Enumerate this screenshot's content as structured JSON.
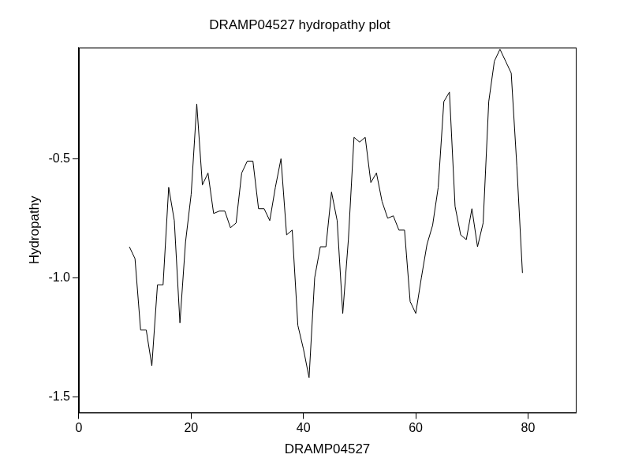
{
  "chart_data": {
    "type": "line",
    "title": "DRAMP04527 hydropathy plot",
    "x_label": "DRAMP04527",
    "y_label": "Hydropathy",
    "x": [
      9,
      10,
      11,
      12,
      13,
      14,
      15,
      16,
      17,
      18,
      19,
      20,
      21,
      22,
      23,
      24,
      25,
      26,
      27,
      28,
      29,
      30,
      31,
      32,
      33,
      34,
      35,
      36,
      37,
      38,
      39,
      40,
      41,
      42,
      43,
      44,
      45,
      46,
      47,
      48,
      49,
      50,
      51,
      52,
      53,
      54,
      55,
      56,
      57,
      58,
      59,
      60,
      61,
      62,
      63,
      64,
      65,
      66,
      67,
      68,
      69,
      70,
      71,
      72,
      73,
      74,
      75,
      76,
      77,
      78,
      79
    ],
    "values": [
      -0.87,
      -0.92,
      -1.22,
      -1.22,
      -1.37,
      -1.03,
      -1.03,
      -0.62,
      -0.76,
      -1.19,
      -0.85,
      -0.65,
      -0.27,
      -0.61,
      -0.56,
      -0.73,
      -0.72,
      -0.72,
      -0.79,
      -0.77,
      -0.56,
      -0.51,
      -0.51,
      -0.71,
      -0.71,
      -0.76,
      -0.62,
      -0.5,
      -0.82,
      -0.8,
      -1.2,
      -1.3,
      -1.42,
      -1.0,
      -0.87,
      -0.87,
      -0.64,
      -0.76,
      -1.15,
      -0.84,
      -0.41,
      -0.43,
      -0.41,
      -0.6,
      -0.56,
      -0.68,
      -0.75,
      -0.74,
      -0.8,
      -0.8,
      -1.1,
      -1.15,
      -1.0,
      -0.86,
      -0.78,
      -0.62,
      -0.26,
      -0.22,
      -0.7,
      -0.82,
      -0.84,
      -0.71,
      -0.87,
      -0.77,
      -0.26,
      -0.09,
      -0.04,
      -0.09,
      -0.14,
      -0.53,
      -0.98
    ],
    "color": "#000000",
    "xlim": [
      0,
      88.5
    ],
    "xticks": [
      0,
      20,
      40,
      60,
      80
    ],
    "ylim": [
      -1.567,
      -0.033
    ],
    "yticks": [
      -1.5,
      {
        "value": -1,
        "label": "-1.0"
      },
      -0.5
    ],
    "grid": false
  }
}
